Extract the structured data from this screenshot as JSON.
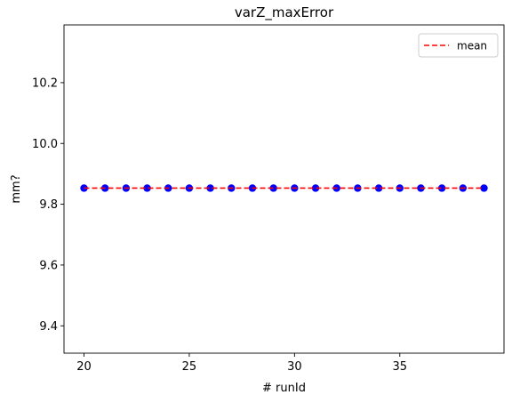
{
  "chart_data": {
    "type": "scatter",
    "title": "varZ_maxError",
    "xlabel": "# runId",
    "ylabel": "mm?",
    "xlim": [
      19.05,
      39.95
    ],
    "ylim": [
      9.31,
      10.39
    ],
    "xticks": [
      20,
      25,
      30,
      35
    ],
    "yticks": [
      9.4,
      9.6,
      9.8,
      10.0,
      10.2
    ],
    "xtick_labels": [
      "20",
      "25",
      "30",
      "35"
    ],
    "ytick_labels": [
      "9.4",
      "9.6",
      "9.8",
      "10.0",
      "10.2"
    ],
    "series": [
      {
        "kind": "points",
        "color": "#0000ff",
        "x": [
          20,
          21,
          22,
          23,
          24,
          25,
          26,
          27,
          28,
          29,
          30,
          31,
          32,
          33,
          34,
          35,
          36,
          37,
          38,
          39
        ],
        "y": [
          9.853,
          9.853,
          9.853,
          9.853,
          9.853,
          9.853,
          9.853,
          9.853,
          9.853,
          9.853,
          9.853,
          9.853,
          9.853,
          9.853,
          9.853,
          9.853,
          9.853,
          9.853,
          9.853,
          9.853
        ]
      },
      {
        "kind": "line",
        "name": "mean",
        "color": "#ff0000",
        "style": "dashed",
        "x": [
          20,
          39
        ],
        "y": [
          9.853,
          9.853
        ]
      }
    ],
    "legend": {
      "placement": "top-right",
      "entries": [
        "mean"
      ]
    },
    "grid": false
  }
}
